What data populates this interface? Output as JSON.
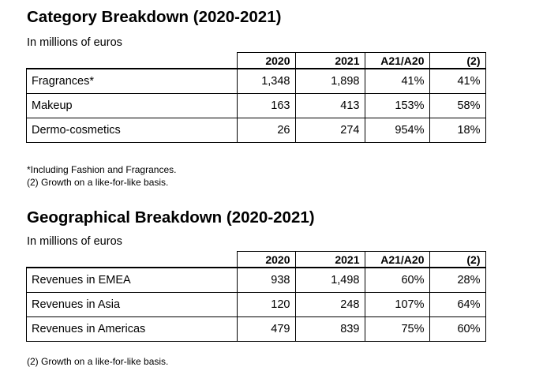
{
  "category": {
    "title": "Category Breakdown (2020-2021)",
    "subtitle": "In millions of euros",
    "headers": [
      "",
      "2020",
      "2021",
      "A21/A20",
      "(2)"
    ],
    "rows": [
      {
        "label": "Fragrances*",
        "v2020": "1,348",
        "v2021": "1,898",
        "ratio": "41%",
        "lfl": "41%"
      },
      {
        "label": "Makeup",
        "v2020": "163",
        "v2021": "413",
        "ratio": "153%",
        "lfl": "58%"
      },
      {
        "label": "Dermo-cosmetics",
        "v2020": "26",
        "v2021": "274",
        "ratio": "954%",
        "lfl": "18%"
      }
    ],
    "notes": [
      "*Including Fashion and Fragrances.",
      "(2) Growth on a like-for-like basis."
    ]
  },
  "geographical": {
    "title": "Geographical Breakdown (2020-2021)",
    "subtitle": "In millions of euros",
    "headers": [
      "",
      "2020",
      "2021",
      "A21/A20",
      "(2)"
    ],
    "rows": [
      {
        "label": "Revenues in EMEA",
        "v2020": "938",
        "v2021": "1,498",
        "ratio": "60%",
        "lfl": "28%"
      },
      {
        "label": "Revenues in Asia",
        "v2020": "120",
        "v2021": "248",
        "ratio": "107%",
        "lfl": "64%"
      },
      {
        "label": "Revenues in Americas",
        "v2020": "479",
        "v2021": "839",
        "ratio": "75%",
        "lfl": "60%"
      }
    ],
    "notes": [
      "(2) Growth on a like-for-like basis."
    ]
  }
}
